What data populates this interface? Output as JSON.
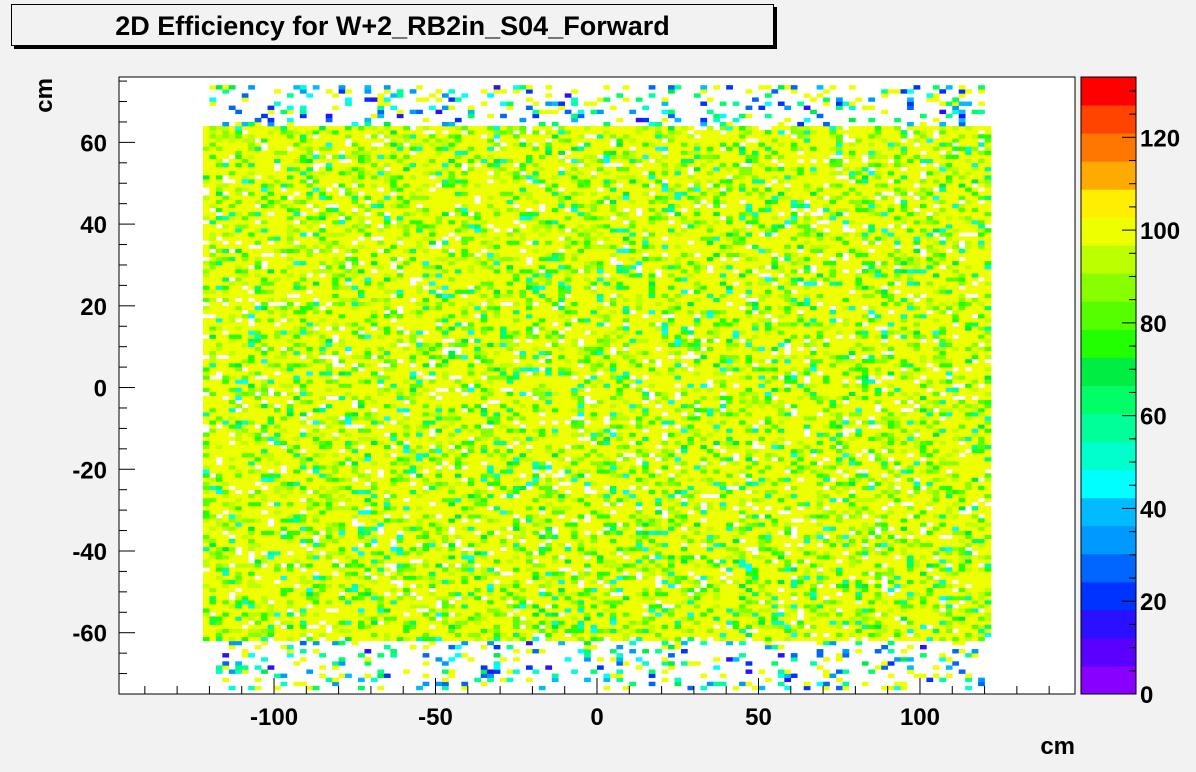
{
  "chart_data": {
    "type": "heatmap",
    "title": "2D Efficiency for W+2_RB2in_S04_Forward",
    "xlabel": "cm",
    "ylabel": "cm",
    "xlim": [
      -148,
      148
    ],
    "ylim": [
      -75,
      76
    ],
    "x_ticks": [
      -100,
      -50,
      0,
      50,
      100
    ],
    "y_ticks": [
      -60,
      -40,
      -20,
      0,
      20,
      40,
      60
    ],
    "z_range": [
      0,
      133
    ],
    "z_ticks": [
      0,
      20,
      40,
      60,
      80,
      100,
      120
    ],
    "filled_region": {
      "x": [
        -122,
        122
      ],
      "y": [
        -62,
        64
      ]
    },
    "sparse_fringe_y": [
      [
        64,
        74
      ],
      [
        -74,
        -62
      ]
    ],
    "dominant_value": 100,
    "palette": [
      "#8800ff",
      "#5a00ff",
      "#2a10ff",
      "#0033ff",
      "#0066ff",
      "#0099ff",
      "#00bbff",
      "#00ffff",
      "#00ffcc",
      "#00ff99",
      "#00ff66",
      "#00ee44",
      "#22ff00",
      "#55ff00",
      "#88ff00",
      "#bbff00",
      "#eeff00",
      "#ffee00",
      "#ffaa00",
      "#ff7700",
      "#ff4400",
      "#ff0000"
    ]
  }
}
